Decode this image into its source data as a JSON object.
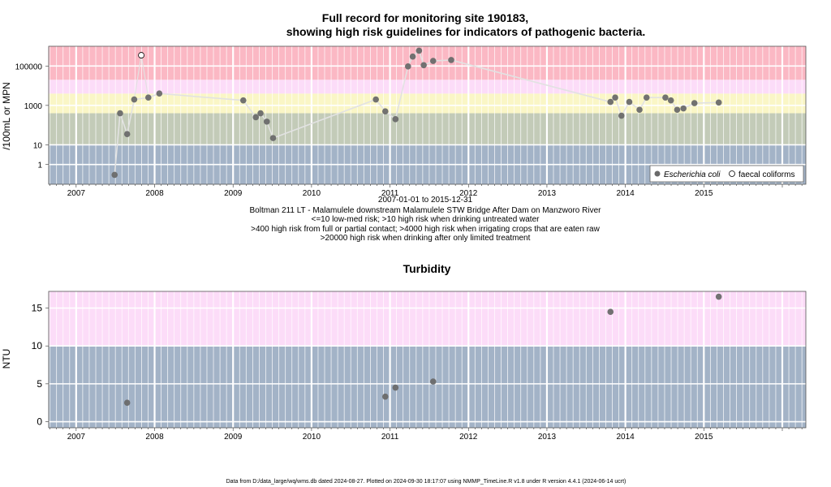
{
  "chart_data": [
    {
      "type": "scatter",
      "title_line1": "Full record for monitoring site 190183,",
      "title_line2": "showing high risk guidelines for indicators of pathogenic bacteria.",
      "ylabel": "/100mL or MPN",
      "y_scale": "log",
      "ylim": [
        0.1,
        1000000
      ],
      "y_ticks": [
        {
          "value": 1,
          "label": "1"
        },
        {
          "value": 10,
          "label": "10"
        },
        {
          "value": 1000,
          "label": "1000"
        },
        {
          "value": 100000,
          "label": "100000"
        }
      ],
      "x_ticks": [
        "2007",
        "2008",
        "2009",
        "2010",
        "2011",
        "2012",
        "2013",
        "2014",
        "2015"
      ],
      "xlim": [
        2006.65,
        2016.3
      ],
      "bands": [
        {
          "from": 0.1,
          "to": 10,
          "color": "#a3b3c7"
        },
        {
          "from": 10,
          "to": 400,
          "color": "#c3cbb8"
        },
        {
          "from": 400,
          "to": 4000,
          "color": "#faf6c6"
        },
        {
          "from": 4000,
          "to": 20000,
          "color": "#fcdcf8"
        },
        {
          "from": 20000,
          "to": 1000000,
          "color": "#fbb8c4"
        }
      ],
      "caption_lines": [
        "2007-01-01 to 2015-12-31",
        "Boltman 211 LT - Malamulele downstream Malamulele STW Bridge After Dam on Manzworo River",
        "<=10 low-med risk; >10 high risk when drinking untreated water",
        ">400 high risk from full or partial contact; >4000 high risk when irrigating crops that are eaten raw",
        ">20000 high risk when drinking after only limited treatment"
      ],
      "legend_position": "bottom-right",
      "series": [
        {
          "name": "Escherichia coli",
          "style": "filled",
          "color": "#6a6a6a",
          "x": [
            2007.49,
            2007.56,
            2007.65,
            2007.74,
            2007.92,
            2008.06,
            2009.13,
            2009.29,
            2009.35,
            2009.43,
            2009.51,
            2010.82,
            2010.94,
            2011.07,
            2011.23,
            2011.29,
            2011.37,
            2011.43,
            2011.55,
            2011.78,
            2013.81,
            2013.87,
            2013.95,
            2014.05,
            2014.18,
            2014.27,
            2014.51,
            2014.58,
            2014.66,
            2014.74,
            2014.88,
            2015.19
          ],
          "y": [
            0.3,
            400,
            35,
            2000,
            2500,
            4000,
            1800,
            250,
            400,
            150,
            22,
            2000,
            500,
            200,
            95000,
            300000,
            600000,
            110000,
            180000,
            200000,
            1500,
            2500,
            300,
            1500,
            600,
            2500,
            2500,
            1800,
            600,
            700,
            1300,
            1400
          ]
        },
        {
          "name": "faecal coliforms",
          "style": "open",
          "color": "#000000",
          "x": [
            2007.83
          ],
          "y": [
            350000
          ]
        }
      ]
    },
    {
      "type": "scatter",
      "title": "Turbidity",
      "ylabel": "NTU",
      "y_scale": "linear",
      "ylim": [
        -0.8,
        17.2
      ],
      "y_ticks": [
        {
          "value": 0,
          "label": "0"
        },
        {
          "value": 5,
          "label": "5"
        },
        {
          "value": 10,
          "label": "10"
        },
        {
          "value": 15,
          "label": "15"
        }
      ],
      "x_ticks": [
        "2007",
        "2008",
        "2009",
        "2010",
        "2011",
        "2012",
        "2013",
        "2014",
        "2015"
      ],
      "xlim": [
        2006.65,
        2016.3
      ],
      "bands": [
        {
          "from": -0.8,
          "to": 10,
          "color": "#a3b3c7"
        },
        {
          "from": 10,
          "to": 17.2,
          "color": "#fcdcf8"
        }
      ],
      "series": [
        {
          "name": "",
          "style": "filled",
          "color": "#6a6a6a",
          "x": [
            2007.65,
            2010.94,
            2011.07,
            2011.55,
            2013.81,
            2015.19
          ],
          "y": [
            2.5,
            3.3,
            4.5,
            5.3,
            14.5,
            16.5
          ]
        }
      ]
    }
  ],
  "footer": "Data from D:/data_large/wq/wms.db dated 2024-08-27. Plotted on 2024-09-30 18:17:07 using NMMP_TimeLine.R v1.8 under R version 4.4.1 (2024-06-14 ucrt)"
}
